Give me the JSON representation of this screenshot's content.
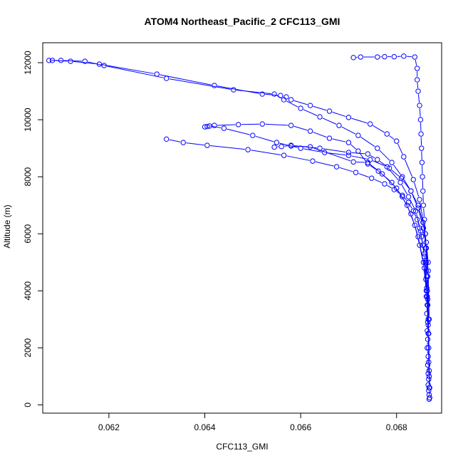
{
  "chart_data": {
    "type": "line",
    "title": "ATOM4 Northeast_Pacific_2 CFC113_GMI",
    "xlabel": "CFC113_GMI",
    "ylabel": "Altitude (m)",
    "xlim": [
      0.06062,
      0.06894
    ],
    "ylim": [
      -290,
      12700
    ],
    "xticks": [
      0.062,
      0.064,
      0.066,
      0.068
    ],
    "xtick_labels": [
      "0.062",
      "0.064",
      "0.066",
      "0.068"
    ],
    "yticks": [
      0,
      2000,
      4000,
      6000,
      8000,
      10000,
      12000
    ],
    "ytick_labels": [
      "0",
      "2000",
      "4000",
      "6000",
      "8000",
      "10000",
      "12000"
    ],
    "grid": false,
    "legend": "none",
    "series": [
      {
        "color": "#0000ff",
        "points": [
          [
            0.06868,
            200
          ],
          [
            0.06868,
            350
          ],
          [
            0.06867,
            500
          ],
          [
            0.06866,
            700
          ],
          [
            0.06867,
            900
          ],
          [
            0.06866,
            1100
          ],
          [
            0.06865,
            1400
          ],
          [
            0.06866,
            1700
          ],
          [
            0.06864,
            2000
          ],
          [
            0.06865,
            2300
          ],
          [
            0.06864,
            2600
          ],
          [
            0.06865,
            2900
          ],
          [
            0.06863,
            3200
          ],
          [
            0.06864,
            3500
          ],
          [
            0.06862,
            3800
          ],
          [
            0.06863,
            4100
          ],
          [
            0.06861,
            4400
          ],
          [
            0.06862,
            4700
          ],
          [
            0.0686,
            5000
          ],
          [
            0.06858,
            5300
          ],
          [
            0.06855,
            5600
          ],
          [
            0.06852,
            5900
          ],
          [
            0.06848,
            6200
          ],
          [
            0.06843,
            6500
          ],
          [
            0.06835,
            6800
          ],
          [
            0.06825,
            7100
          ],
          [
            0.06812,
            7350
          ],
          [
            0.06795,
            7550
          ],
          [
            0.06775,
            7750
          ],
          [
            0.06748,
            7950
          ],
          [
            0.06715,
            8150
          ],
          [
            0.06675,
            8350
          ],
          [
            0.06625,
            8550
          ],
          [
            0.06565,
            8750
          ],
          [
            0.0649,
            8950
          ],
          [
            0.06405,
            9100
          ],
          [
            0.06355,
            9200
          ],
          [
            0.0632,
            9320
          ]
        ]
      },
      {
        "color": "#0000ff",
        "points": [
          [
            0.06869,
            250
          ],
          [
            0.06868,
            600
          ],
          [
            0.06868,
            1000
          ],
          [
            0.06867,
            1500
          ],
          [
            0.06867,
            2000
          ],
          [
            0.06866,
            2500
          ],
          [
            0.06866,
            3000
          ],
          [
            0.06865,
            3500
          ],
          [
            0.06864,
            4000
          ],
          [
            0.06863,
            4500
          ],
          [
            0.06862,
            5000
          ],
          [
            0.06861,
            5500
          ],
          [
            0.0686,
            6000
          ],
          [
            0.06858,
            6500
          ],
          [
            0.06856,
            7000
          ],
          [
            0.06855,
            7500
          ],
          [
            0.06854,
            8000
          ],
          [
            0.06853,
            8500
          ],
          [
            0.06852,
            9000
          ],
          [
            0.06851,
            9500
          ],
          [
            0.0685,
            10000
          ],
          [
            0.06848,
            10500
          ],
          [
            0.06845,
            11000
          ],
          [
            0.06843,
            11400
          ],
          [
            0.06843,
            11800
          ],
          [
            0.06838,
            12200
          ],
          [
            0.06815,
            12230
          ],
          [
            0.06795,
            12210
          ],
          [
            0.06775,
            12210
          ],
          [
            0.0676,
            12200
          ],
          [
            0.06725,
            12200
          ],
          [
            0.0671,
            12180
          ]
        ]
      },
      {
        "color": "#0000ff",
        "points": [
          [
            0.06866,
            5000
          ],
          [
            0.06862,
            5700
          ],
          [
            0.06855,
            6400
          ],
          [
            0.06845,
            7000
          ],
          [
            0.0683,
            7500
          ],
          [
            0.06812,
            8000
          ],
          [
            0.0679,
            8500
          ],
          [
            0.0676,
            9000
          ],
          [
            0.0672,
            9450
          ],
          [
            0.0668,
            9800
          ],
          [
            0.0664,
            10100
          ],
          [
            0.066,
            10400
          ],
          [
            0.06565,
            10700
          ],
          [
            0.06545,
            10900
          ],
          [
            0.0646,
            11050
          ],
          [
            0.0632,
            11450
          ],
          [
            0.0619,
            11900
          ],
          [
            0.0615,
            12050
          ],
          [
            0.061,
            12080
          ],
          [
            0.06075,
            12080
          ]
        ]
      },
      {
        "color": "#0000ff",
        "points": [
          [
            0.06869,
            600
          ],
          [
            0.06867,
            2500
          ],
          [
            0.06865,
            4500
          ],
          [
            0.0686,
            6000
          ],
          [
            0.06848,
            7200
          ],
          [
            0.06835,
            7900
          ],
          [
            0.06815,
            8700
          ],
          [
            0.068,
            9250
          ],
          [
            0.0678,
            9500
          ],
          [
            0.06745,
            9850
          ],
          [
            0.067,
            10080
          ],
          [
            0.0666,
            10300
          ],
          [
            0.0662,
            10500
          ],
          [
            0.0658,
            10700
          ],
          [
            0.0657,
            10800
          ],
          [
            0.06558,
            10850
          ],
          [
            0.0652,
            10900
          ],
          [
            0.0642,
            11200
          ],
          [
            0.063,
            11600
          ],
          [
            0.0618,
            11950
          ],
          [
            0.0612,
            12050
          ],
          [
            0.06082,
            12080
          ]
        ]
      },
      {
        "color": "#0000ff",
        "points": [
          [
            0.06868,
            1200
          ],
          [
            0.06864,
            3800
          ],
          [
            0.06858,
            5200
          ],
          [
            0.0685,
            6100
          ],
          [
            0.0684,
            6800
          ],
          [
            0.06825,
            7300
          ],
          [
            0.06808,
            7800
          ],
          [
            0.0678,
            8350
          ],
          [
            0.06745,
            8600
          ],
          [
            0.067,
            8750
          ],
          [
            0.0665,
            8850
          ],
          [
            0.066,
            9000
          ],
          [
            0.0655,
            9200
          ],
          [
            0.065,
            9450
          ],
          [
            0.0644,
            9700
          ],
          [
            0.0641,
            9780
          ],
          [
            0.064,
            9750
          ]
        ]
      },
      {
        "color": "#0000ff",
        "points": [
          [
            0.06868,
            3000
          ],
          [
            0.06866,
            4700
          ],
          [
            0.06862,
            5500
          ],
          [
            0.06856,
            6200
          ],
          [
            0.06845,
            6900
          ],
          [
            0.0683,
            7500
          ],
          [
            0.0681,
            7950
          ],
          [
            0.06785,
            8300
          ],
          [
            0.0676,
            8600
          ],
          [
            0.0674,
            8800
          ],
          [
            0.067,
            8850
          ],
          [
            0.0664,
            9000
          ],
          [
            0.0658,
            9100
          ],
          [
            0.0656,
            9060
          ],
          [
            0.06545,
            9040
          ]
        ]
      },
      {
        "color": "#0000ff",
        "points": [
          [
            0.06865,
            3700
          ],
          [
            0.06858,
            4800
          ],
          [
            0.06848,
            5600
          ],
          [
            0.06838,
            6300
          ],
          [
            0.06822,
            7000
          ],
          [
            0.068,
            7600
          ],
          [
            0.0677,
            8100
          ],
          [
            0.0674,
            8500
          ],
          [
            0.0671,
            8520
          ],
          [
            0.0662,
            9050
          ],
          [
            0.0658,
            9080
          ]
        ]
      },
      {
        "color": "#0000ff",
        "points": [
          [
            0.06866,
            2800
          ],
          [
            0.06862,
            4000
          ],
          [
            0.06856,
            5000
          ],
          [
            0.06845,
            5900
          ],
          [
            0.0683,
            6700
          ],
          [
            0.06812,
            7300
          ],
          [
            0.0679,
            7800
          ],
          [
            0.06762,
            8200
          ],
          [
            0.0674,
            8450
          ],
          [
            0.0672,
            8900
          ],
          [
            0.067,
            9200
          ],
          [
            0.0666,
            9350
          ],
          [
            0.0662,
            9600
          ],
          [
            0.0658,
            9800
          ],
          [
            0.0652,
            9850
          ],
          [
            0.0647,
            9830
          ],
          [
            0.0642,
            9800
          ],
          [
            0.06405,
            9760
          ]
        ]
      }
    ]
  }
}
